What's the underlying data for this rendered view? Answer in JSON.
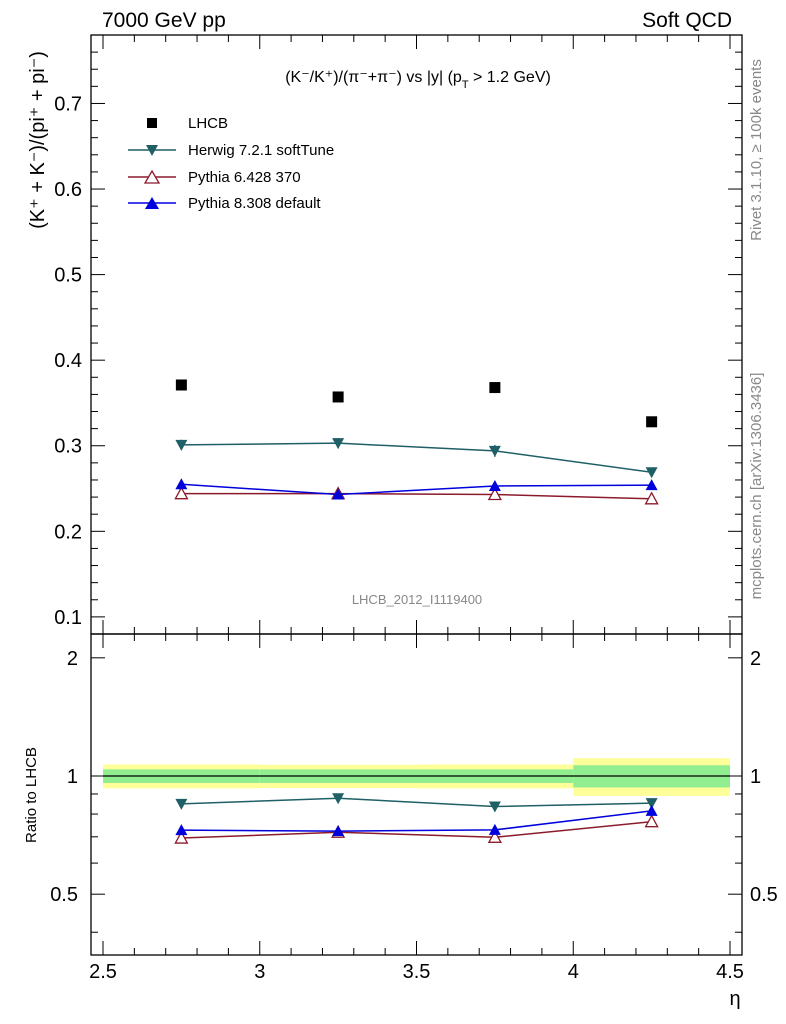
{
  "header": {
    "left": "7000 GeV pp",
    "right": "Soft QCD"
  },
  "side_labels": {
    "rivet": "Rivet 3.1.10, ≥ 100k events",
    "mcplots": "mcplots.cern.ch [arXiv:1306.3436]"
  },
  "chart_data": {
    "type": "line",
    "title": "(K⁻/K⁺)/(π⁻+π⁻) vs |y| (p_T > 1.2 GeV)",
    "title_parts": {
      "main": "(K⁻/K⁺)/(π⁻+π⁻) vs |y| (p",
      "sub": "T",
      "tail": " > 1.2 GeV)"
    },
    "ylabel": "(K⁺ + K⁻)/(pi⁺ + pi⁻)",
    "ratio_ylabel": "Ratio to LHCB",
    "xlabel": "η",
    "watermark": "LHCB_2012_I1119400",
    "xlim": [
      2.5,
      4.5
    ],
    "ylim": [
      0.08,
      0.78
    ],
    "ratio_ylim": [
      0.35,
      2.3
    ],
    "x_ticks": [
      "2.5",
      "3",
      "3.5",
      "4",
      "4.5"
    ],
    "y_ticks": [
      "0.1",
      "0.2",
      "0.3",
      "0.4",
      "0.5",
      "0.6",
      "0.7"
    ],
    "ratio_ticks": [
      "0.5",
      "1",
      "2"
    ],
    "x": [
      2.75,
      3.25,
      3.75,
      4.25
    ],
    "bins": [
      [
        2.5,
        3.0
      ],
      [
        3.0,
        3.5
      ],
      [
        3.5,
        4.0
      ],
      [
        4.0,
        4.5
      ]
    ],
    "data": {
      "name": "LHCB",
      "values": [
        0.371,
        0.357,
        0.368,
        0.328
      ],
      "band_inner": [
        0.04,
        0.04,
        0.04,
        0.065
      ],
      "band_outer": [
        0.07,
        0.068,
        0.07,
        0.11
      ]
    },
    "series": [
      {
        "name": "Herwig 7.2.1 softTune",
        "color": "#1f5f66",
        "marker": "triangle-down",
        "values": [
          0.301,
          0.303,
          0.294,
          0.269
        ],
        "errors": [
          0.006,
          0.006,
          0.007,
          0.004
        ],
        "ratio": [
          0.849,
          0.878,
          0.836,
          0.853
        ]
      },
      {
        "name": "Pythia 6.428 370",
        "color": "#8b1a2b",
        "marker": "triangle-up-open",
        "values": [
          0.244,
          0.244,
          0.243,
          0.238
        ],
        "errors": [
          0.004,
          0.003,
          0.004,
          0.004
        ],
        "ratio": [
          0.695,
          0.719,
          0.698,
          0.765
        ]
      },
      {
        "name": "Pythia 8.308 default",
        "color": "#0000dd",
        "marker": "triangle-up",
        "values": [
          0.255,
          0.243,
          0.253,
          0.254
        ],
        "errors": [
          0.004,
          0.003,
          0.004,
          0.004
        ],
        "ratio": [
          0.728,
          0.724,
          0.729,
          0.815
        ]
      }
    ]
  }
}
